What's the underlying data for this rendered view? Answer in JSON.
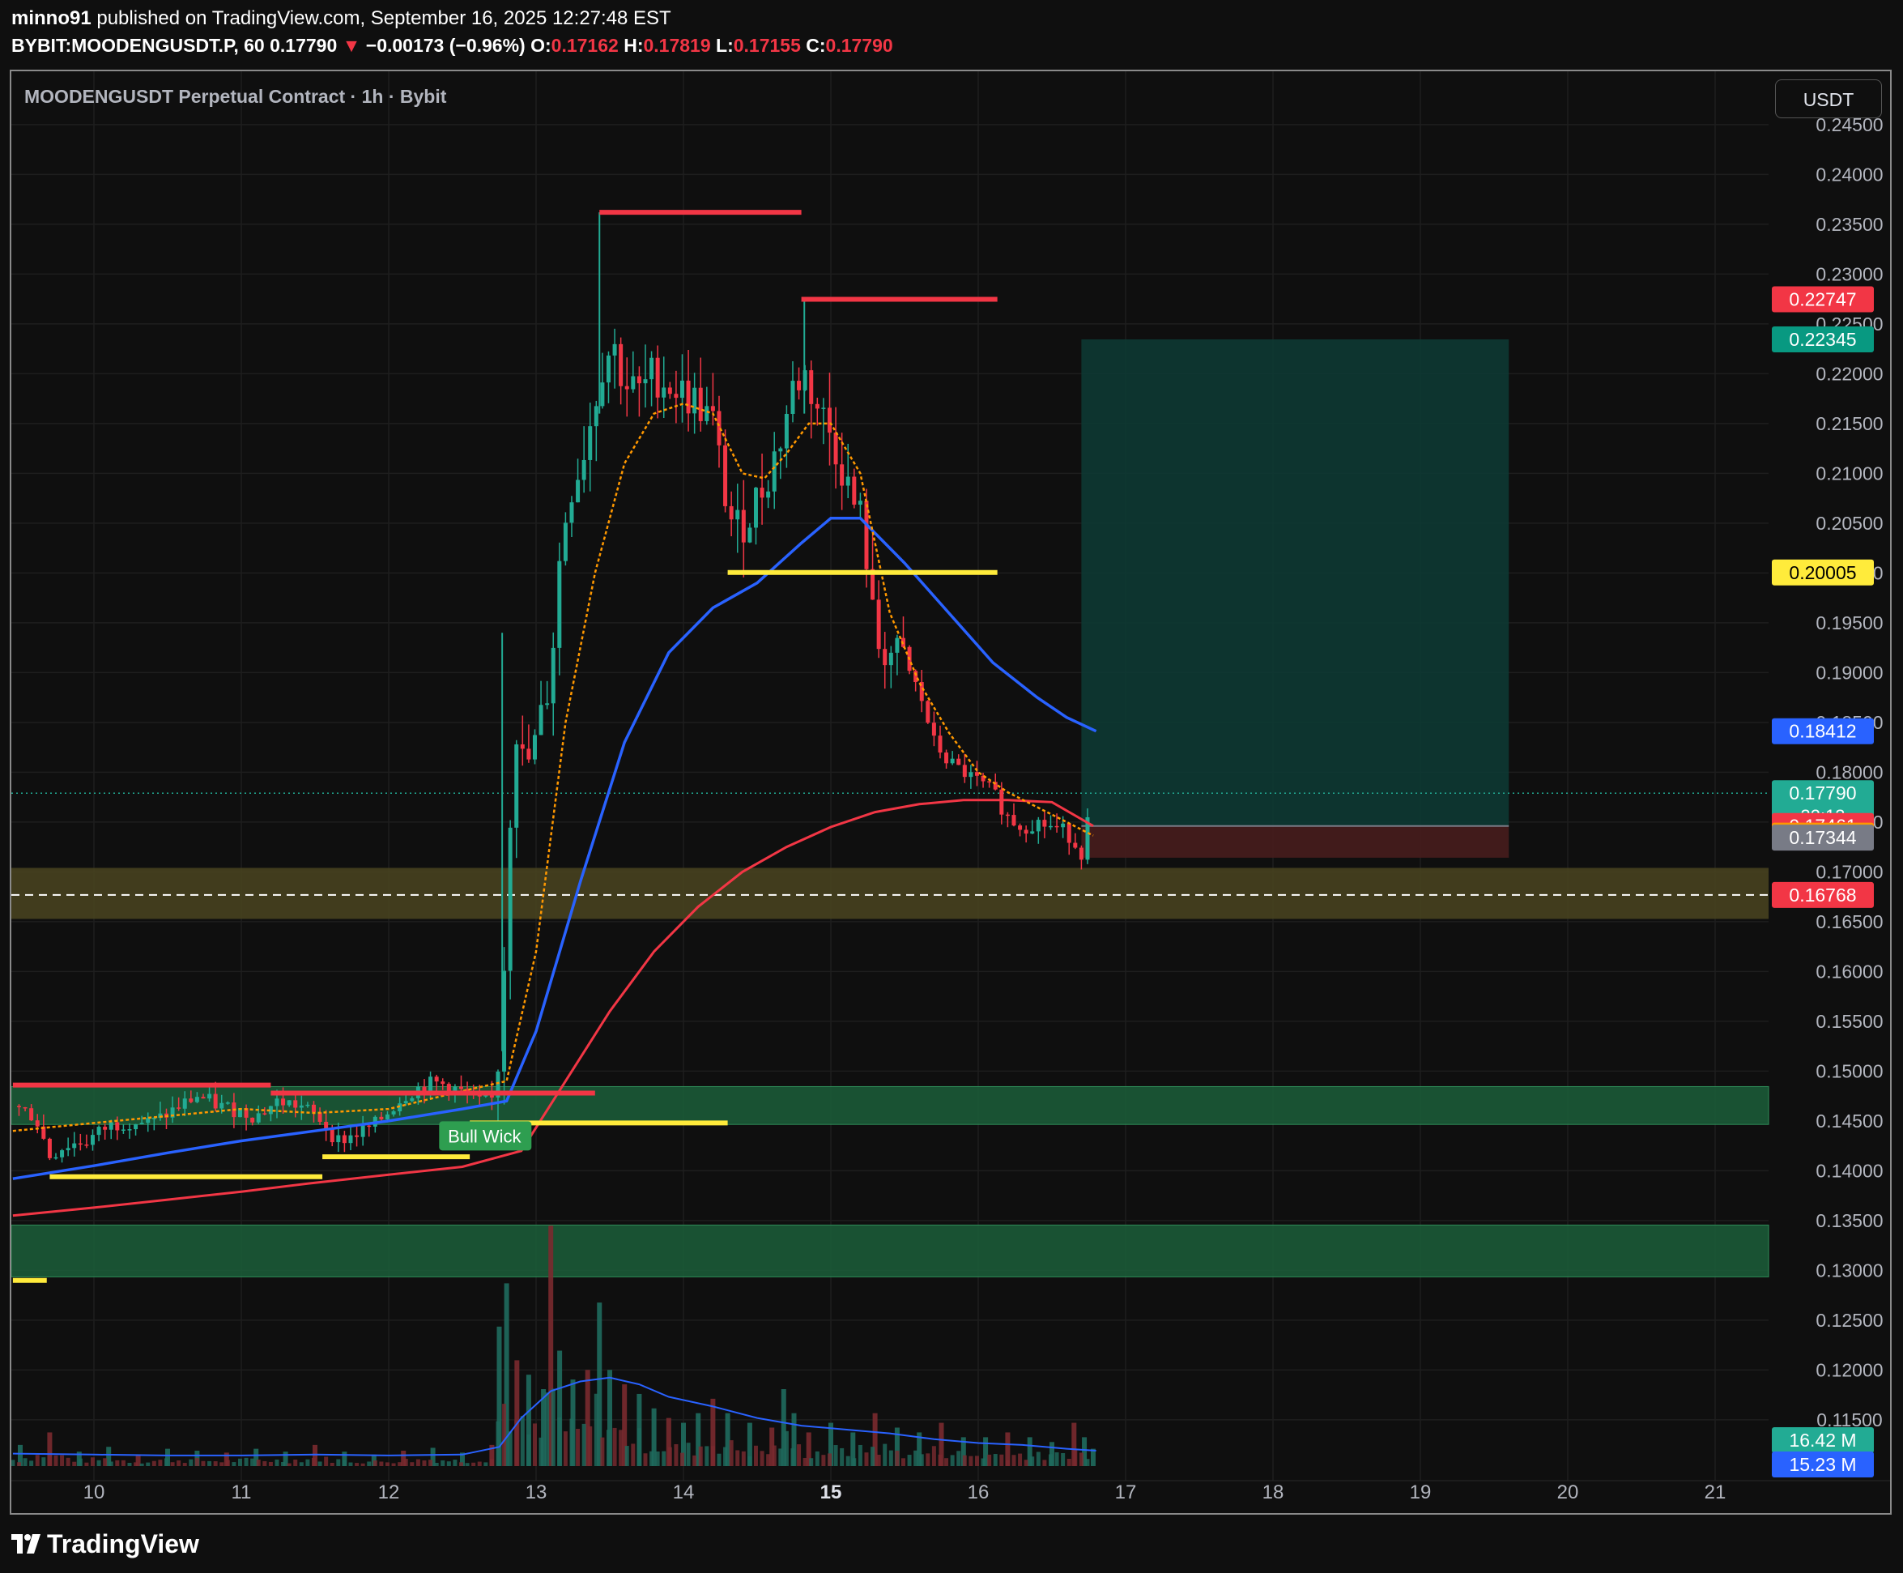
{
  "header": {
    "author": "minno91",
    "published_text": "published on TradingView.com, September 16, 2025 12:27:48 EST",
    "symbol": "BYBIT:MOODENGUSDT.P, 60",
    "last": "0.17790",
    "change_arrow": "▼",
    "change": "−0.00173 (−0.96%)",
    "o_label": "O:",
    "o": "0.17162",
    "h_label": "H:",
    "h": "0.17819",
    "l_label": "L:",
    "l": "0.17155",
    "c_label": "C:",
    "c": "0.17790"
  },
  "legend": {
    "title": "MOODENGUSDT Perpetual Contract · 1h · Bybit"
  },
  "currency_button": "USDT",
  "footer": {
    "brand": "TradingView",
    "logo_icon": "tradingview-logo-icon"
  },
  "colors": {
    "background": "#0f0f0f",
    "up": "#22ab94",
    "down": "#f23645",
    "ema_fast": "#ff9800",
    "ema_mid": "#2962ff",
    "ema_slow": "#f23645",
    "level_yellow": "#ffeb3b",
    "zone_green": "#1b5e3a",
    "zone_olive": "#4a4420"
  },
  "chart_data": {
    "type": "candlestick",
    "x_axis": {
      "ticks": [
        "10",
        "11",
        "12",
        "13",
        "14",
        "15",
        "16",
        "17",
        "18",
        "19",
        "20",
        "21"
      ],
      "bold_tick": "15",
      "range_days": [
        9.45,
        21.4
      ]
    },
    "y_axis": {
      "unit": "USDT",
      "range": [
        0.1165,
        0.2475
      ],
      "ticks": [
        "0.24500",
        "0.24000",
        "0.23500",
        "0.23000",
        "0.22500",
        "0.22000",
        "0.21500",
        "0.21000",
        "0.20500",
        "0.20000",
        "0.19500",
        "0.19000",
        "0.18500",
        "0.18000",
        "0.17500",
        "0.17000",
        "0.16500",
        "0.16000",
        "0.15500",
        "0.15000",
        "0.14500",
        "0.14000",
        "0.13500",
        "0.13000",
        "0.12500",
        "0.12000",
        "0.11500"
      ]
    },
    "price_labels": [
      {
        "value": 0.22747,
        "text": "0.22747",
        "color": "#f23645",
        "text_color": "#ffffff"
      },
      {
        "value": 0.22345,
        "text": "0.22345",
        "color": "#089981",
        "text_color": "#ffffff"
      },
      {
        "value": 0.20005,
        "text": "0.20005",
        "color": "#ffeb3b",
        "text_color": "#000000"
      },
      {
        "value": 0.18412,
        "text": "0.18412",
        "color": "#2962ff",
        "text_color": "#ffffff"
      },
      {
        "value": 0.1779,
        "text": "0.17790",
        "sub": "32:13",
        "color": "#22ab94",
        "text_color": "#ffffff"
      },
      {
        "value": 0.17461,
        "text": "0.17461",
        "color": "#f23645",
        "text_color": "#ffffff"
      },
      {
        "value": 0.17364,
        "text": "0.17364",
        "color": "#ff9800",
        "text_color": "#ffffff"
      },
      {
        "value": 0.17344,
        "text": "0.17344",
        "color": "#787b86",
        "text_color": "#ffffff"
      },
      {
        "value": 0.16768,
        "text": "0.16768",
        "color": "#f23645",
        "text_color": "#ffffff"
      }
    ],
    "volume_labels": [
      {
        "text": "16.42 M",
        "color": "#22ab94"
      },
      {
        "text": "15.23 M",
        "color": "#2962ff"
      }
    ],
    "annotation": {
      "text": "Bull Wick",
      "day": 12.65,
      "price": 0.1435
    },
    "close_path": [
      [
        9.45,
        0.1465
      ],
      [
        9.6,
        0.1455
      ],
      [
        9.7,
        0.1415
      ],
      [
        9.8,
        0.1425
      ],
      [
        9.95,
        0.143
      ],
      [
        10.1,
        0.1445
      ],
      [
        10.25,
        0.145
      ],
      [
        10.4,
        0.1448
      ],
      [
        10.55,
        0.1462
      ],
      [
        10.7,
        0.1475
      ],
      [
        10.85,
        0.1465
      ],
      [
        11.0,
        0.146
      ],
      [
        11.1,
        0.1455
      ],
      [
        11.25,
        0.147
      ],
      [
        11.4,
        0.1465
      ],
      [
        11.55,
        0.145
      ],
      [
        11.65,
        0.143
      ],
      [
        11.75,
        0.1435
      ],
      [
        11.9,
        0.1445
      ],
      [
        12.0,
        0.146
      ],
      [
        12.1,
        0.1475
      ],
      [
        12.2,
        0.1483
      ],
      [
        12.3,
        0.1488
      ],
      [
        12.4,
        0.1486
      ],
      [
        12.5,
        0.1478
      ],
      [
        12.6,
        0.1468
      ],
      [
        12.72,
        0.1472
      ],
      [
        12.77,
        0.156
      ],
      [
        12.82,
        0.175
      ],
      [
        12.86,
        0.185
      ],
      [
        12.92,
        0.18
      ],
      [
        13.0,
        0.183
      ],
      [
        13.1,
        0.19
      ],
      [
        13.15,
        0.2
      ],
      [
        13.22,
        0.208
      ],
      [
        13.3,
        0.211
      ],
      [
        13.38,
        0.216
      ],
      [
        13.45,
        0.221
      ],
      [
        13.52,
        0.223
      ],
      [
        13.6,
        0.219
      ],
      [
        13.7,
        0.218
      ],
      [
        13.8,
        0.22
      ],
      [
        13.9,
        0.219
      ],
      [
        14.0,
        0.218
      ],
      [
        14.1,
        0.217
      ],
      [
        14.2,
        0.215
      ],
      [
        14.28,
        0.208
      ],
      [
        14.35,
        0.204
      ],
      [
        14.45,
        0.206
      ],
      [
        14.55,
        0.209
      ],
      [
        14.65,
        0.213
      ],
      [
        14.75,
        0.219
      ],
      [
        14.82,
        0.22
      ],
      [
        14.9,
        0.217
      ],
      [
        14.97,
        0.215
      ],
      [
        15.05,
        0.212
      ],
      [
        15.15,
        0.207
      ],
      [
        15.22,
        0.205
      ],
      [
        15.3,
        0.193
      ],
      [
        15.4,
        0.192
      ],
      [
        15.5,
        0.191
      ],
      [
        15.6,
        0.188
      ],
      [
        15.7,
        0.183
      ],
      [
        15.8,
        0.181
      ],
      [
        15.9,
        0.18
      ],
      [
        16.0,
        0.179
      ],
      [
        16.1,
        0.178
      ],
      [
        16.2,
        0.1755
      ],
      [
        16.3,
        0.1745
      ],
      [
        16.4,
        0.175
      ],
      [
        16.5,
        0.1745
      ],
      [
        16.6,
        0.174
      ],
      [
        16.7,
        0.172
      ],
      [
        16.78,
        0.1779
      ]
    ],
    "ema_fast": [
      [
        9.45,
        0.144
      ],
      [
        10.0,
        0.1448
      ],
      [
        10.5,
        0.1455
      ],
      [
        11.0,
        0.1462
      ],
      [
        11.5,
        0.1458
      ],
      [
        12.0,
        0.1462
      ],
      [
        12.5,
        0.148
      ],
      [
        12.8,
        0.149
      ],
      [
        13.0,
        0.162
      ],
      [
        13.2,
        0.185
      ],
      [
        13.4,
        0.2
      ],
      [
        13.6,
        0.211
      ],
      [
        13.8,
        0.216
      ],
      [
        14.0,
        0.217
      ],
      [
        14.2,
        0.216
      ],
      [
        14.4,
        0.21
      ],
      [
        14.55,
        0.2095
      ],
      [
        14.7,
        0.212
      ],
      [
        14.85,
        0.215
      ],
      [
        15.0,
        0.215
      ],
      [
        15.2,
        0.21
      ],
      [
        15.4,
        0.196
      ],
      [
        15.6,
        0.189
      ],
      [
        15.8,
        0.184
      ],
      [
        16.0,
        0.18
      ],
      [
        16.2,
        0.178
      ],
      [
        16.4,
        0.1765
      ],
      [
        16.6,
        0.175
      ],
      [
        16.78,
        0.17364
      ]
    ],
    "ema_mid": [
      [
        9.45,
        0.1392
      ],
      [
        10.0,
        0.1405
      ],
      [
        10.5,
        0.1418
      ],
      [
        11.0,
        0.143
      ],
      [
        11.5,
        0.144
      ],
      [
        12.0,
        0.145
      ],
      [
        12.5,
        0.1462
      ],
      [
        12.8,
        0.147
      ],
      [
        13.0,
        0.154
      ],
      [
        13.3,
        0.169
      ],
      [
        13.6,
        0.183
      ],
      [
        13.9,
        0.192
      ],
      [
        14.2,
        0.1965
      ],
      [
        14.5,
        0.199
      ],
      [
        14.8,
        0.203
      ],
      [
        15.0,
        0.2055
      ],
      [
        15.2,
        0.2055
      ],
      [
        15.5,
        0.201
      ],
      [
        15.8,
        0.196
      ],
      [
        16.1,
        0.191
      ],
      [
        16.4,
        0.1875
      ],
      [
        16.6,
        0.1855
      ],
      [
        16.8,
        0.18412
      ]
    ],
    "ema_slow": [
      [
        9.45,
        0.1355
      ],
      [
        10.0,
        0.1363
      ],
      [
        10.5,
        0.1371
      ],
      [
        11.0,
        0.1379
      ],
      [
        11.5,
        0.1388
      ],
      [
        12.0,
        0.1396
      ],
      [
        12.5,
        0.1404
      ],
      [
        12.9,
        0.142
      ],
      [
        13.2,
        0.149
      ],
      [
        13.5,
        0.156
      ],
      [
        13.8,
        0.162
      ],
      [
        14.1,
        0.1665
      ],
      [
        14.4,
        0.17
      ],
      [
        14.7,
        0.1725
      ],
      [
        15.0,
        0.1745
      ],
      [
        15.3,
        0.176
      ],
      [
        15.6,
        0.1768
      ],
      [
        15.9,
        0.1772
      ],
      [
        16.2,
        0.1772
      ],
      [
        16.5,
        0.177
      ],
      [
        16.78,
        0.17461
      ]
    ],
    "resistance_lines": [
      {
        "x0": 9.45,
        "x1": 11.2,
        "y": 0.1486,
        "color": "#f23645"
      },
      {
        "x0": 11.2,
        "x1": 13.4,
        "y": 0.1478,
        "color": "#f23645"
      },
      {
        "x0": 13.43,
        "x1": 14.8,
        "y": 0.2362,
        "color": "#f23645"
      },
      {
        "x0": 14.8,
        "x1": 16.13,
        "y": 0.22747,
        "color": "#f23645"
      }
    ],
    "support_lines": [
      {
        "x0": 9.7,
        "x1": 11.55,
        "y": 0.1394,
        "color": "#ffeb3b"
      },
      {
        "x0": 11.55,
        "x1": 12.55,
        "y": 0.1414,
        "color": "#ffeb3b"
      },
      {
        "x0": 12.55,
        "x1": 14.3,
        "y": 0.1448,
        "color": "#ffeb3b"
      },
      {
        "x0": 14.3,
        "x1": 16.13,
        "y": 0.20005,
        "color": "#ffeb3b"
      },
      {
        "x0": 9.45,
        "x1": 9.68,
        "y": 0.129,
        "color": "#ffeb3b"
      }
    ],
    "zones": [
      {
        "y0": 0.14465,
        "y1": 0.14845,
        "color": "#1b5e3a"
      },
      {
        "y0": 0.12935,
        "y1": 0.13455,
        "color": "#1b5e3a"
      },
      {
        "y0": 0.16528,
        "y1": 0.1704,
        "color": "#4a4420"
      }
    ],
    "dashed_level": 0.16768,
    "position": {
      "x0": 16.7,
      "x1": 19.6,
      "entry": 0.17461,
      "target": 0.22345,
      "stop": 0.17142
    },
    "volume": [
      [
        9.5,
        0.22
      ],
      [
        9.7,
        0.35
      ],
      [
        9.9,
        0.15
      ],
      [
        10.1,
        0.2
      ],
      [
        10.3,
        0.12
      ],
      [
        10.5,
        0.18
      ],
      [
        10.7,
        0.16
      ],
      [
        10.9,
        0.14
      ],
      [
        11.1,
        0.18
      ],
      [
        11.3,
        0.15
      ],
      [
        11.5,
        0.22
      ],
      [
        11.7,
        0.15
      ],
      [
        11.9,
        0.12
      ],
      [
        12.1,
        0.16
      ],
      [
        12.3,
        0.19
      ],
      [
        12.5,
        0.14
      ],
      [
        12.7,
        0.22
      ],
      [
        12.75,
        1.45
      ],
      [
        12.8,
        1.9
      ],
      [
        12.87,
        1.1
      ],
      [
        12.95,
        0.95
      ],
      [
        13.05,
        0.8
      ],
      [
        13.1,
        2.5
      ],
      [
        13.16,
        1.2
      ],
      [
        13.25,
        0.9
      ],
      [
        13.35,
        1.0
      ],
      [
        13.43,
        1.7
      ],
      [
        13.5,
        1.0
      ],
      [
        13.6,
        0.85
      ],
      [
        13.7,
        0.75
      ],
      [
        13.8,
        0.6
      ],
      [
        13.9,
        0.5
      ],
      [
        14.0,
        0.45
      ],
      [
        14.1,
        0.55
      ],
      [
        14.2,
        0.7
      ],
      [
        14.3,
        0.55
      ],
      [
        14.45,
        0.45
      ],
      [
        14.6,
        0.4
      ],
      [
        14.68,
        0.8
      ],
      [
        14.75,
        0.55
      ],
      [
        14.85,
        0.35
      ],
      [
        15.0,
        0.45
      ],
      [
        15.15,
        0.35
      ],
      [
        15.3,
        0.55
      ],
      [
        15.45,
        0.4
      ],
      [
        15.6,
        0.35
      ],
      [
        15.75,
        0.45
      ],
      [
        15.9,
        0.3
      ],
      [
        16.05,
        0.3
      ],
      [
        16.2,
        0.35
      ],
      [
        16.35,
        0.3
      ],
      [
        16.5,
        0.25
      ],
      [
        16.65,
        0.45
      ],
      [
        16.72,
        0.3
      ],
      [
        16.78,
        0.18
      ]
    ],
    "volume_ma": [
      [
        9.45,
        0.13
      ],
      [
        10.0,
        0.12
      ],
      [
        10.5,
        0.11
      ],
      [
        11.0,
        0.11
      ],
      [
        11.5,
        0.12
      ],
      [
        12.0,
        0.11
      ],
      [
        12.5,
        0.12
      ],
      [
        12.75,
        0.2
      ],
      [
        12.9,
        0.5
      ],
      [
        13.1,
        0.78
      ],
      [
        13.3,
        0.88
      ],
      [
        13.5,
        0.92
      ],
      [
        13.7,
        0.85
      ],
      [
        13.9,
        0.72
      ],
      [
        14.2,
        0.62
      ],
      [
        14.5,
        0.5
      ],
      [
        14.8,
        0.42
      ],
      [
        15.1,
        0.38
      ],
      [
        15.4,
        0.34
      ],
      [
        15.7,
        0.28
      ],
      [
        16.0,
        0.24
      ],
      [
        16.3,
        0.22
      ],
      [
        16.6,
        0.18
      ],
      [
        16.8,
        0.16
      ]
    ]
  }
}
